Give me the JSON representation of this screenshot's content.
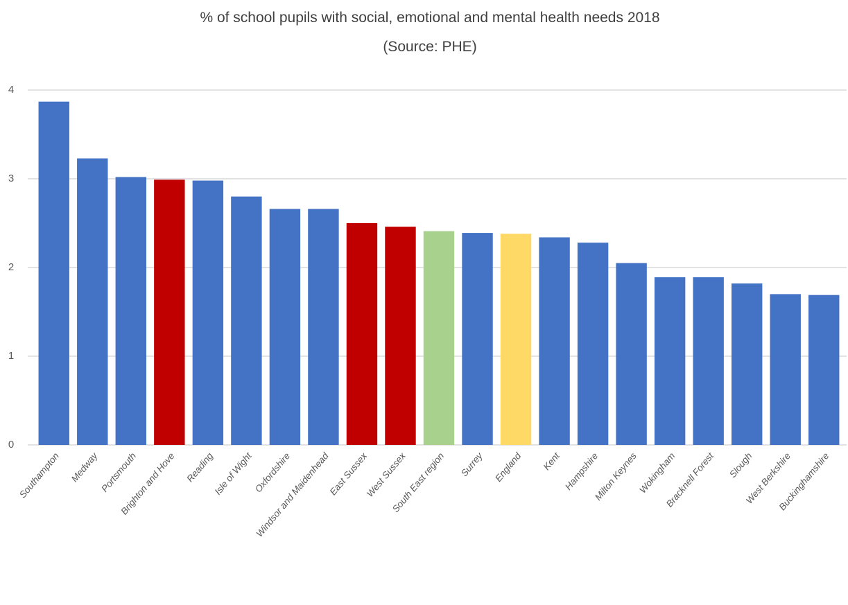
{
  "chart_data": {
    "type": "bar",
    "title": "% of school pupils with social, emotional and mental health needs 2018",
    "subtitle": "(Source: PHE)",
    "categories": [
      "Southampton",
      "Medway",
      "Portsmouth",
      "Brighton and Hove",
      "Reading",
      "Isle of Wight",
      "Oxfordshire",
      "Windsor and Maidenhead",
      "East Sussex",
      "West Sussex",
      "South East region",
      "Surrey",
      "England",
      "Kent",
      "Hampshire",
      "Milton Keynes",
      "Wokingham",
      "Bracknell Forest",
      "Slough",
      "West Berkshire",
      "Buckinghamshire"
    ],
    "values": [
      3.87,
      3.23,
      3.02,
      2.99,
      2.98,
      2.8,
      2.66,
      2.66,
      2.5,
      2.46,
      2.41,
      2.39,
      2.38,
      2.34,
      2.28,
      2.05,
      1.89,
      1.89,
      1.82,
      1.7,
      1.69
    ],
    "colors": [
      "#4472c4",
      "#4472c4",
      "#4472c4",
      "#c00000",
      "#4472c4",
      "#4472c4",
      "#4472c4",
      "#4472c4",
      "#c00000",
      "#c00000",
      "#a9d18e",
      "#4472c4",
      "#ffd966",
      "#4472c4",
      "#4472c4",
      "#4472c4",
      "#4472c4",
      "#4472c4",
      "#4472c4",
      "#4472c4",
      "#4472c4"
    ],
    "ylim": [
      0,
      4
    ],
    "yticks": [
      0,
      1,
      2,
      3,
      4
    ],
    "grid": true
  }
}
